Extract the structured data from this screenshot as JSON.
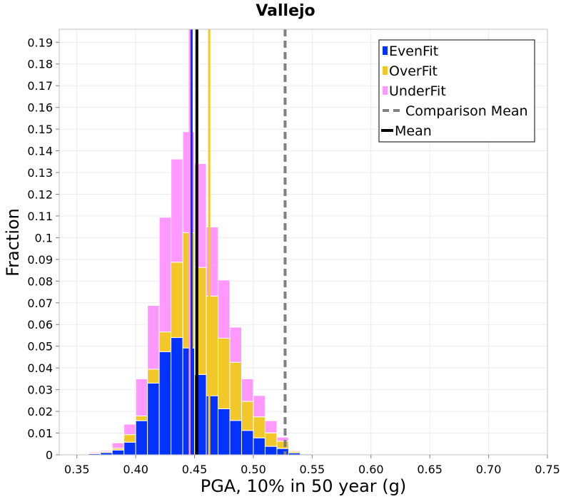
{
  "chart_data": {
    "type": "bar",
    "stacked": true,
    "title": "Vallejo",
    "xlabel": "PGA, 10% in 50 year (g)",
    "ylabel": "Fraction",
    "xlim": [
      0.335,
      0.75
    ],
    "ylim": [
      0,
      0.196
    ],
    "x_ticks": [
      "0.35",
      "0.40",
      "0.45",
      "0.50",
      "0.55",
      "0.60",
      "0.65",
      "0.70",
      "0.75"
    ],
    "y_ticks": [
      "0",
      "0.01",
      "0.02",
      "0.03",
      "0.04",
      "0.05",
      "0.06",
      "0.07",
      "0.08",
      "0.09",
      "0.1",
      "0.11",
      "0.12",
      "0.13",
      "0.14",
      "0.15",
      "0.16",
      "0.17",
      "0.18",
      "0.19"
    ],
    "grid": true,
    "legend_position": "top-right",
    "bin_width": 0.01,
    "bin_centers": [
      0.345,
      0.355,
      0.365,
      0.375,
      0.385,
      0.395,
      0.405,
      0.415,
      0.425,
      0.435,
      0.445,
      0.455,
      0.465,
      0.475,
      0.485,
      0.495,
      0.505,
      0.515,
      0.525,
      0.535,
      0.545,
      0.555,
      0.565,
      0.575,
      0.585,
      0.595,
      0.605
    ],
    "series": [
      {
        "name": "EvenFit",
        "color": "#0433ff",
        "values": [
          0,
          0,
          0.0005,
          0.001,
          0.0022,
          0.0058,
          0.0157,
          0.033,
          0.0475,
          0.054,
          0.0492,
          0.037,
          0.0272,
          0.0212,
          0.0158,
          0.0112,
          0.0078,
          0.0039,
          0.0029,
          0.0009,
          0.0004,
          0.0002,
          0.0001,
          0.0001,
          0,
          0,
          0
        ]
      },
      {
        "name": "OverFit",
        "color": "#f2c72a",
        "values": [
          0,
          0,
          0.0002,
          0.0005,
          0.0008,
          0.0035,
          0.0022,
          0.0064,
          0.0091,
          0.0347,
          0.0531,
          0.0493,
          0.0459,
          0.0325,
          0.0268,
          0.0134,
          0.0097,
          0.0062,
          0.0034,
          0.0007,
          0.0003,
          0.0001,
          0,
          0,
          0,
          0,
          0
        ]
      },
      {
        "name": "UnderFit",
        "color": "#ff99ff",
        "values": [
          0,
          0.0001,
          0.0005,
          0.0005,
          0.0025,
          0.0048,
          0.0171,
          0.0294,
          0.0528,
          0.0475,
          0.0465,
          0.0478,
          0.0318,
          0.0268,
          0.0162,
          0.0104,
          0.0098,
          0.0056,
          0.0018,
          0.0004,
          0.0003,
          0.0003,
          0.0003,
          0.0001,
          0.0001,
          0.0001,
          0.0001
        ]
      }
    ],
    "reference_lines": [
      {
        "name": "Comparison Mean",
        "x": 0.527,
        "color": "#808080",
        "style": "dashed"
      },
      {
        "name": "Mean",
        "x": 0.452,
        "color": "#000000",
        "style": "solid"
      },
      {
        "name": "EvenFit mean",
        "x": 0.4475,
        "color": "#0433ff",
        "style": "solid"
      },
      {
        "name": "OverFit mean",
        "x": 0.4625,
        "color": "#f2c72a",
        "style": "solid"
      },
      {
        "name": "UnderFit mean",
        "x": 0.446,
        "color": "#ff99ff",
        "style": "solid"
      }
    ],
    "legend": [
      {
        "label": "EvenFit",
        "kind": "box",
        "color": "#0433ff"
      },
      {
        "label": "OverFit",
        "kind": "box",
        "color": "#f2c72a"
      },
      {
        "label": "UnderFit",
        "kind": "box",
        "color": "#ff99ff"
      },
      {
        "label": "Comparison Mean",
        "kind": "dashed-line",
        "color": "#808080"
      },
      {
        "label": "Mean",
        "kind": "solid-line",
        "color": "#000000"
      }
    ]
  }
}
